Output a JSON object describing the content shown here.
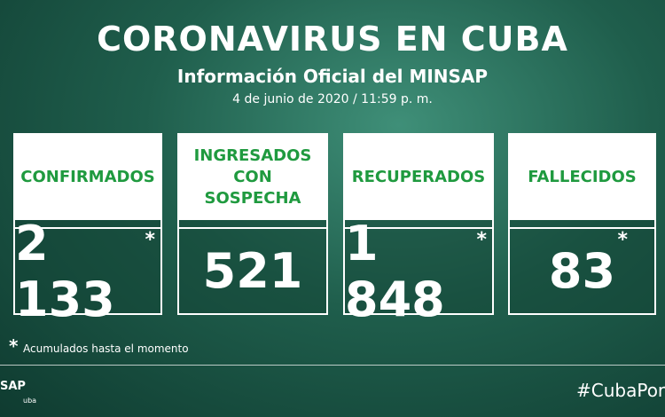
{
  "header": {
    "title": "CORONAVIRUS EN CUBA",
    "subtitle": "Información Oficial del MINSAP",
    "date": "4 de junio de 2020 / 11:59 p. m."
  },
  "cards": [
    {
      "label": "CONFIRMADOS",
      "value": "2 133",
      "asterisk": "*"
    },
    {
      "label": "INGRESADOS CON SOSPECHA",
      "value": "521"
    },
    {
      "label": "RECUPERADOS",
      "value": "1 848",
      "asterisk": "*"
    },
    {
      "label": "FALLECIDOS",
      "value": "83",
      "asterisk": "*"
    }
  ],
  "footnote": {
    "symbol": "*",
    "text": "Acumulados hasta el momento"
  },
  "footer": {
    "logo": "SAP",
    "logo_sub": "uba",
    "hashtag": "#CubaPor"
  }
}
